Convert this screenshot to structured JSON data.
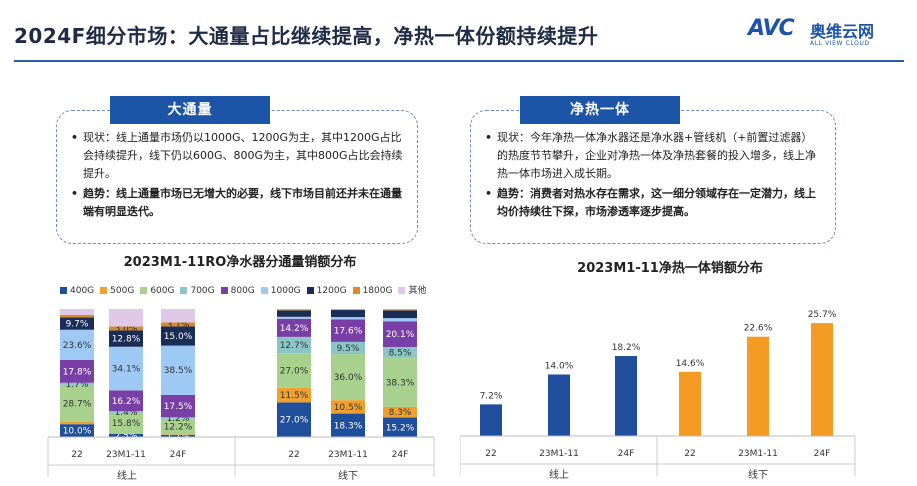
{
  "page": {
    "title": "2024F细分市场：大通量占比继续提高，净热一体份额持续提升"
  },
  "logo": {
    "brand": "AVC",
    "cn": "奥维云网",
    "en": "ALL VIEW CLOUD"
  },
  "panels": {
    "left": {
      "title": "大通量",
      "bullets": [
        {
          "lead": "现状：",
          "text": "线上通量市场仍以1000G、1200G为主，其中1200G占比会持续提升，线下仍以600G、800G为主，其中800G占比会持续提升。"
        },
        {
          "lead": "趋势：",
          "text": "线上通量市场已无增大的必要，线下市场目前还并未在通量端有明显迭代。"
        }
      ]
    },
    "right": {
      "title": "净热一体",
      "bullets": [
        {
          "lead": "现状：",
          "text": "今年净热一体净水器还是净水器+管线机（+前置过滤器）的热度节节攀升，企业对净热一体及净热套餐的投入增多，线上净热一体市场进入成长期。"
        },
        {
          "lead": "趋势：",
          "text": "消费者对热水存在需求，这一细分领域存在一定潜力，线上均价持续往下探，市场渗透率逐步提高。"
        }
      ]
    }
  },
  "chart_data": [
    {
      "type": "bar",
      "stacked": true,
      "title": "2023M1-11RO净水器分通量销额分布",
      "groups": [
        "线上",
        "线下"
      ],
      "categories": [
        "22",
        "23M1-11",
        "24F",
        "22",
        "23M1-11",
        "24F"
      ],
      "ylim": [
        0,
        100
      ],
      "unit": "%",
      "series": [
        {
          "name": "400G",
          "color": "#1f4e9c",
          "values": [
            10.0,
            2.5,
            1.7,
            27.0,
            18.3,
            15.2
          ],
          "labels": [
            "10.0%",
            "2.5%",
            "1.7%",
            "27.0%",
            "18.3%",
            "15.2%"
          ]
        },
        {
          "name": "500G",
          "color": "#f0a030",
          "values": [
            2.0,
            0.5,
            0.3,
            11.5,
            10.5,
            8.3
          ],
          "labels": [
            "",
            "",
            "",
            "11.5%",
            "10.5%",
            "8.3%"
          ]
        },
        {
          "name": "600G",
          "color": "#a9d18e",
          "values": [
            28.7,
            15.8,
            12.2,
            27.0,
            36.0,
            38.3
          ],
          "labels": [
            "28.7%",
            "15.8%",
            "12.2%",
            "27.0%",
            "36.0%",
            "38.3%"
          ]
        },
        {
          "name": "700G",
          "color": "#8ac6c8",
          "values": [
            1.7,
            1.4,
            1.2,
            12.7,
            9.5,
            8.5
          ],
          "labels": [
            "1.7%",
            "1.4%",
            "1.2%",
            "12.7%",
            "9.5%",
            "8.5%"
          ]
        },
        {
          "name": "800G",
          "color": "#7a3fa6",
          "values": [
            17.8,
            16.2,
            17.5,
            14.2,
            17.6,
            20.1
          ],
          "labels": [
            "17.8%",
            "16.2%",
            "17.5%",
            "14.2%",
            "17.6%",
            "20.1%"
          ]
        },
        {
          "name": "1000G",
          "color": "#9fc9f5",
          "values": [
            23.6,
            34.1,
            38.5,
            1.5,
            1.8,
            2.5
          ],
          "labels": [
            "23.6%",
            "34.1%",
            "38.5%",
            "",
            "",
            ""
          ]
        },
        {
          "name": "1200G",
          "color": "#1a2d57",
          "values": [
            9.7,
            12.8,
            15.0,
            5.0,
            5.5,
            6.0
          ],
          "labels": [
            "9.7%",
            "12.8%",
            "15.0%",
            "",
            "",
            ""
          ]
        },
        {
          "name": "1800G",
          "color": "#d98a2a",
          "values": [
            2.0,
            3.0,
            3.1,
            0.8,
            0.5,
            0.8
          ],
          "labels": [
            "",
            "3.0%",
            "3.1%",
            "",
            "",
            ""
          ]
        },
        {
          "name": "其他",
          "color": "#e0c8e8",
          "values": [
            4.5,
            13.7,
            10.5,
            0.3,
            0.3,
            0.3
          ],
          "labels": [
            "",
            "",
            "",
            "",
            "",
            ""
          ]
        }
      ]
    },
    {
      "type": "bar",
      "title": "2023M1-11净热一体销额分布",
      "groups": [
        "线上",
        "线下"
      ],
      "categories": [
        "22",
        "23M1-11",
        "24F",
        "22",
        "23M1-11",
        "24F"
      ],
      "ylim": [
        0,
        28
      ],
      "unit": "%",
      "values": [
        7.2,
        14.0,
        18.2,
        14.6,
        22.6,
        25.7
      ],
      "labels": [
        "7.2%",
        "14.0%",
        "18.2%",
        "14.6%",
        "22.6%",
        "25.7%"
      ],
      "colors": [
        "#1f4e9c",
        "#1f4e9c",
        "#1f4e9c",
        "#f59a23",
        "#f59a23",
        "#f59a23"
      ]
    }
  ]
}
